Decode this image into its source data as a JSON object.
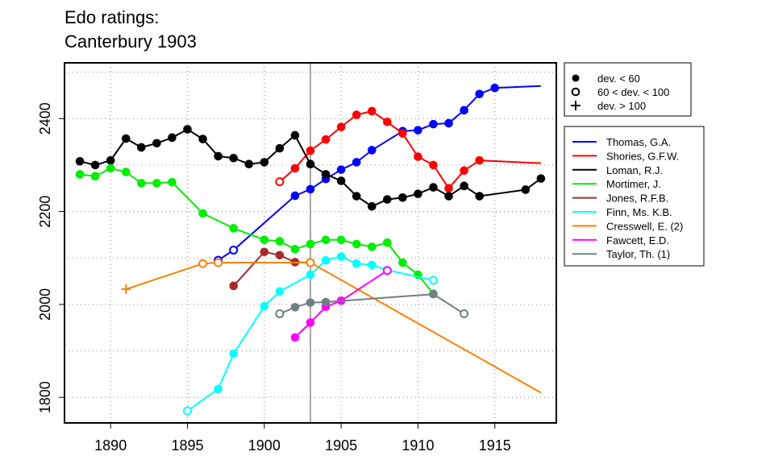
{
  "title_line1": "Edo ratings:",
  "title_line2": "Canterbury 1903",
  "chart_data": {
    "type": "line",
    "title": "Edo ratings:\nCanterbury 1903",
    "xlabel": "",
    "ylabel": "",
    "xlim": [
      1887,
      1919
    ],
    "ylim": [
      1745,
      2520
    ],
    "x_ticks": [
      1890,
      1895,
      1900,
      1905,
      1910,
      1915
    ],
    "y_ticks": [
      1800,
      2000,
      2200,
      2400
    ],
    "vline": 1903,
    "grid": "dotted",
    "symbol_legend": [
      {
        "label": "dev. < 60",
        "marker": "filled"
      },
      {
        "label": "60 < dev. < 100",
        "marker": "open"
      },
      {
        "label": "dev. > 100",
        "marker": "plus"
      }
    ],
    "series": [
      {
        "name": "Thomas, G.A.",
        "color": "#0000ff",
        "points": [
          [
            1897,
            2095,
            "o"
          ],
          [
            1898,
            2117,
            "o"
          ],
          [
            1902,
            2234,
            "f"
          ],
          [
            1903,
            2248,
            "f"
          ],
          [
            1904,
            2270,
            "f"
          ],
          [
            1905,
            2290,
            "f"
          ],
          [
            1906,
            2306,
            "f"
          ],
          [
            1907,
            2332,
            "f"
          ],
          [
            1909,
            2373,
            "f"
          ],
          [
            1910,
            2375,
            "f"
          ],
          [
            1911,
            2388,
            "f"
          ],
          [
            1912,
            2390,
            "f"
          ],
          [
            1913,
            2418,
            "f"
          ],
          [
            1914,
            2453,
            "f"
          ],
          [
            1915,
            2466,
            "f"
          ],
          [
            1918,
            2470,
            "n"
          ]
        ]
      },
      {
        "name": "Shories, G.F.W.",
        "color": "#ff0000",
        "points": [
          [
            1901,
            2264,
            "o"
          ],
          [
            1902,
            2293,
            "f"
          ],
          [
            1903,
            2331,
            "f"
          ],
          [
            1904,
            2355,
            "f"
          ],
          [
            1905,
            2382,
            "f"
          ],
          [
            1906,
            2408,
            "f"
          ],
          [
            1907,
            2416,
            "f"
          ],
          [
            1908,
            2393,
            "f"
          ],
          [
            1909,
            2368,
            "f"
          ],
          [
            1910,
            2318,
            "f"
          ],
          [
            1911,
            2300,
            "f"
          ],
          [
            1912,
            2250,
            "f"
          ],
          [
            1913,
            2288,
            "f"
          ],
          [
            1914,
            2310,
            "f"
          ],
          [
            1918,
            2304,
            "n"
          ]
        ]
      },
      {
        "name": "Loman, R.J.",
        "color": "#000000",
        "points": [
          [
            1888,
            2308,
            "f"
          ],
          [
            1889,
            2300,
            "f"
          ],
          [
            1890,
            2310,
            "f"
          ],
          [
            1891,
            2357,
            "f"
          ],
          [
            1892,
            2338,
            "f"
          ],
          [
            1893,
            2347,
            "f"
          ],
          [
            1894,
            2359,
            "f"
          ],
          [
            1895,
            2377,
            "f"
          ],
          [
            1896,
            2356,
            "f"
          ],
          [
            1897,
            2319,
            "f"
          ],
          [
            1898,
            2315,
            "f"
          ],
          [
            1899,
            2302,
            "f"
          ],
          [
            1900,
            2306,
            "f"
          ],
          [
            1901,
            2336,
            "f"
          ],
          [
            1902,
            2364,
            "f"
          ],
          [
            1903,
            2302,
            "f"
          ],
          [
            1904,
            2280,
            "f"
          ],
          [
            1905,
            2266,
            "f"
          ],
          [
            1906,
            2233,
            "f"
          ],
          [
            1907,
            2211,
            "f"
          ],
          [
            1908,
            2226,
            "f"
          ],
          [
            1909,
            2230,
            "f"
          ],
          [
            1910,
            2238,
            "f"
          ],
          [
            1911,
            2252,
            "f"
          ],
          [
            1912,
            2233,
            "f"
          ],
          [
            1913,
            2255,
            "f"
          ],
          [
            1914,
            2233,
            "f"
          ],
          [
            1917,
            2247,
            "f"
          ],
          [
            1918,
            2271,
            "f"
          ]
        ]
      },
      {
        "name": "Mortimer, J.",
        "color": "#00ee00",
        "points": [
          [
            1888,
            2280,
            "f"
          ],
          [
            1889,
            2276,
            "f"
          ],
          [
            1890,
            2293,
            "f"
          ],
          [
            1891,
            2285,
            "f"
          ],
          [
            1892,
            2261,
            "f"
          ],
          [
            1893,
            2261,
            "f"
          ],
          [
            1894,
            2263,
            "f"
          ],
          [
            1896,
            2196,
            "f"
          ],
          [
            1898,
            2164,
            "f"
          ],
          [
            1900,
            2139,
            "f"
          ],
          [
            1901,
            2136,
            "f"
          ],
          [
            1902,
            2119,
            "f"
          ],
          [
            1903,
            2130,
            "f"
          ],
          [
            1904,
            2139,
            "f"
          ],
          [
            1905,
            2139,
            "f"
          ],
          [
            1906,
            2130,
            "f"
          ],
          [
            1907,
            2124,
            "f"
          ],
          [
            1908,
            2133,
            "f"
          ],
          [
            1909,
            2090,
            "f"
          ],
          [
            1910,
            2064,
            "f"
          ],
          [
            1911,
            2023,
            "f"
          ]
        ]
      },
      {
        "name": "Jones, R.F.B.",
        "color": "#a52a2a",
        "points": [
          [
            1898,
            2040,
            "f"
          ],
          [
            1900,
            2113,
            "f"
          ],
          [
            1901,
            2106,
            "f"
          ],
          [
            1902,
            2091,
            "f"
          ],
          [
            1903,
            2090,
            "f"
          ]
        ]
      },
      {
        "name": "Finn, Ms. K.B.",
        "color": "#00ffff",
        "points": [
          [
            1895,
            1771,
            "o"
          ],
          [
            1897,
            1818,
            "f"
          ],
          [
            1898,
            1894,
            "f"
          ],
          [
            1900,
            1996,
            "f"
          ],
          [
            1901,
            2028,
            "f"
          ],
          [
            1903,
            2064,
            "f"
          ],
          [
            1904,
            2095,
            "f"
          ],
          [
            1905,
            2103,
            "f"
          ],
          [
            1906,
            2088,
            "f"
          ],
          [
            1907,
            2085,
            "f"
          ],
          [
            1908,
            2074,
            "f"
          ],
          [
            1911,
            2052,
            "o"
          ]
        ]
      },
      {
        "name": "Cresswell, E. (2)",
        "color": "#ff7f00",
        "points": [
          [
            1891,
            2033,
            "p"
          ],
          [
            1896,
            2088,
            "o"
          ],
          [
            1897,
            2090,
            "o"
          ],
          [
            1903,
            2090,
            "o"
          ],
          [
            1918,
            1810,
            "n"
          ]
        ]
      },
      {
        "name": "Fawcett, E.D.",
        "color": "#ff00ff",
        "points": [
          [
            1902,
            1929,
            "f"
          ],
          [
            1903,
            1961,
            "f"
          ],
          [
            1904,
            1995,
            "f"
          ],
          [
            1905,
            2008,
            "f"
          ],
          [
            1908,
            2073,
            "o"
          ]
        ]
      },
      {
        "name": "Taylor, Th. (1)",
        "color": "#708080",
        "points": [
          [
            1901,
            1980,
            "o"
          ],
          [
            1902,
            1994,
            "f"
          ],
          [
            1903,
            2004,
            "f"
          ],
          [
            1904,
            2005,
            "f"
          ],
          [
            1911,
            2022,
            "f"
          ],
          [
            1913,
            1980,
            "o"
          ]
        ]
      }
    ]
  }
}
